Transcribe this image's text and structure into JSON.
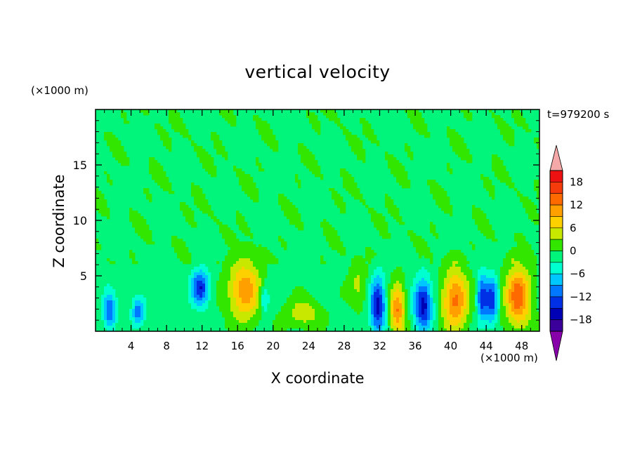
{
  "chart_data": {
    "type": "heatmap",
    "title": "vertical velocity",
    "xlabel": "X coordinate",
    "ylabel": "Z coordinate",
    "x_unit_label": "(×1000 m)",
    "y_unit_label": "(×1000 m)",
    "annotation": "t=979200 s",
    "x_ticks": [
      "4",
      "8",
      "12",
      "16",
      "20",
      "24",
      "28",
      "32",
      "36",
      "40",
      "44",
      "48"
    ],
    "x_tick_values": [
      4,
      8,
      12,
      16,
      20,
      24,
      28,
      32,
      36,
      40,
      44,
      48
    ],
    "y_ticks": [
      "5",
      "10",
      "15"
    ],
    "y_tick_values": [
      5,
      10,
      15
    ],
    "xlim": [
      0,
      50
    ],
    "ylim": [
      0,
      20
    ],
    "colorbar": {
      "tick_labels": [
        "18",
        "12",
        "6",
        "0",
        "−6",
        "−12",
        "−18"
      ],
      "tick_values": [
        18,
        12,
        6,
        0,
        -6,
        -12,
        -18
      ],
      "range": [
        -21,
        21
      ],
      "levels": [
        {
          "min": 18,
          "max": 21,
          "color": "#ee1111"
        },
        {
          "min": 15,
          "max": 18,
          "color": "#f53a0c"
        },
        {
          "min": 12,
          "max": 15,
          "color": "#ff6a00"
        },
        {
          "min": 9,
          "max": 12,
          "color": "#ff9f00"
        },
        {
          "min": 6,
          "max": 9,
          "color": "#ffd000"
        },
        {
          "min": 3,
          "max": 6,
          "color": "#c8e800"
        },
        {
          "min": 0,
          "max": 3,
          "color": "#33e600"
        },
        {
          "min": -3,
          "max": 0,
          "color": "#00f57a"
        },
        {
          "min": -6,
          "max": -3,
          "color": "#00ffd0"
        },
        {
          "min": -9,
          "max": -6,
          "color": "#00c8ff"
        },
        {
          "min": -12,
          "max": -9,
          "color": "#0078ff"
        },
        {
          "min": -15,
          "max": -12,
          "color": "#0030e6"
        },
        {
          "min": -18,
          "max": -15,
          "color": "#0000b4"
        },
        {
          "min": -21,
          "max": -18,
          "color": "#3a0099"
        }
      ],
      "over_color": "#f5a8a8",
      "under_color": "#8800aa"
    },
    "background_color": "#00f57a",
    "features": [
      {
        "x": 1.6,
        "z": 1.8,
        "sx": 0.5,
        "sz": 1.2,
        "w": -11
      },
      {
        "x": 4.8,
        "z": 1.8,
        "sx": 0.5,
        "sz": 0.9,
        "w": -10
      },
      {
        "x": 11.8,
        "z": 3.9,
        "sx": 0.7,
        "sz": 1.1,
        "w": -14
      },
      {
        "x": 16.8,
        "z": 3.7,
        "sx": 1.3,
        "sz": 1.9,
        "w": 12
      },
      {
        "x": 19.0,
        "z": 2.9,
        "sx": 0.4,
        "sz": 1.0,
        "w": -7
      },
      {
        "x": 23.4,
        "z": 1.6,
        "sx": 1.4,
        "sz": 0.9,
        "w": 6
      },
      {
        "x": 29.6,
        "z": 4.2,
        "sx": 0.7,
        "sz": 1.4,
        "w": 5
      },
      {
        "x": 31.8,
        "z": 2.4,
        "sx": 0.6,
        "sz": 1.7,
        "w": -16
      },
      {
        "x": 34.0,
        "z": 2.0,
        "sx": 0.6,
        "sz": 1.6,
        "w": 13
      },
      {
        "x": 36.9,
        "z": 2.4,
        "sx": 0.7,
        "sz": 1.6,
        "w": -16
      },
      {
        "x": 40.5,
        "z": 2.8,
        "sx": 1.0,
        "sz": 1.9,
        "w": 14
      },
      {
        "x": 43.5,
        "z": 3.0,
        "sx": 0.4,
        "sz": 1.5,
        "w": -12
      },
      {
        "x": 44.6,
        "z": 2.8,
        "sx": 0.5,
        "sz": 1.5,
        "w": -13
      },
      {
        "x": 47.6,
        "z": 3.1,
        "sx": 1.0,
        "sz": 1.9,
        "w": 15
      }
    ]
  }
}
